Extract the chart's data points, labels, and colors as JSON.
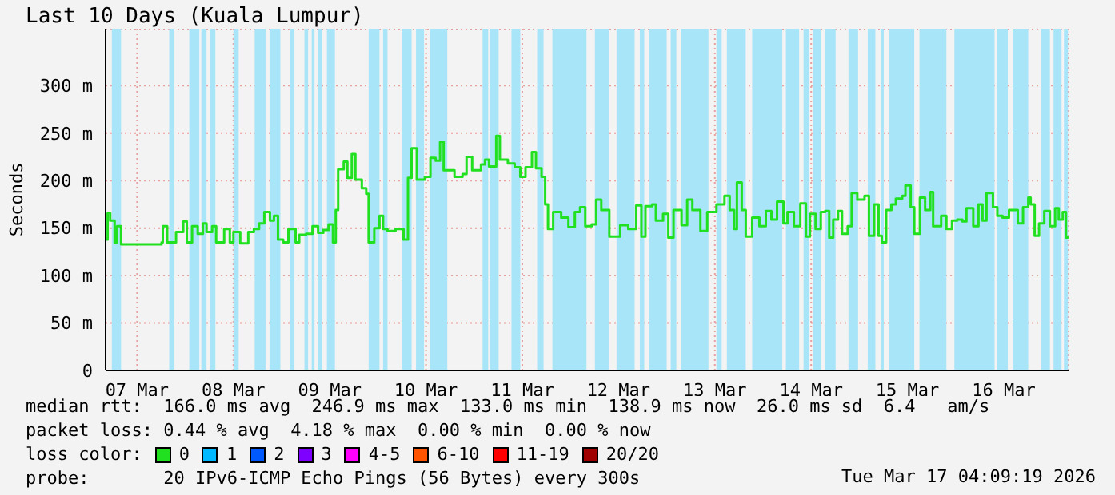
{
  "chart_data": {
    "type": "step",
    "title": "Last 10 Days (Kuala Lumpur)",
    "ylabel": "Seconds",
    "legend_title": "loss color:",
    "legend": "bottom",
    "grid": true,
    "x": [
      "2026-03-07T04:20",
      "2026-03-07T04:40",
      "2026-03-07T05:18",
      "2026-03-07T06:24",
      "2026-03-07T07:00",
      "2026-03-07T08:00",
      "2026-03-07T18:06",
      "2026-03-07T18:24",
      "2026-03-07T19:30",
      "2026-03-07T21:42",
      "2026-03-07T23:30",
      "2026-03-08T00:24",
      "2026-03-08T01:42",
      "2026-03-08T03:06",
      "2026-03-08T04:24",
      "2026-03-08T05:18",
      "2026-03-08T06:42",
      "2026-03-08T07:42",
      "2026-03-08T09:42",
      "2026-03-08T11:06",
      "2026-03-08T12:00",
      "2026-03-08T13:42",
      "2026-03-08T15:42",
      "2026-03-08T17:06",
      "2026-03-08T18:24",
      "2026-03-08T19:42",
      "2026-03-08T21:06",
      "2026-03-08T22:06",
      "2026-03-08T23:06",
      "2026-03-09T00:24",
      "2026-03-09T01:42",
      "2026-03-09T03:30",
      "2026-03-09T04:24",
      "2026-03-09T06:06",
      "2026-03-09T07:42",
      "2026-03-09T09:06",
      "2026-03-09T10:24",
      "2026-03-09T11:42",
      "2026-03-09T12:48",
      "2026-03-09T13:30",
      "2026-03-09T14:06",
      "2026-03-09T15:30",
      "2026-03-09T16:24",
      "2026-03-09T17:30",
      "2026-03-09T18:24",
      "2026-03-09T20:00",
      "2026-03-09T21:06",
      "2026-03-09T21:42",
      "2026-03-09T23:06",
      "2026-03-10T00:24",
      "2026-03-10T01:18",
      "2026-03-10T02:24",
      "2026-03-10T04:24",
      "2026-03-10T06:24",
      "2026-03-10T07:30",
      "2026-03-10T08:24",
      "2026-03-10T09:42",
      "2026-03-10T11:42",
      "2026-03-10T13:06",
      "2026-03-10T14:24",
      "2026-03-10T15:30",
      "2026-03-10T16:24",
      "2026-03-10T19:06",
      "2026-03-10T21:06",
      "2026-03-10T22:06",
      "2026-03-10T23:30",
      "2026-03-11T01:42",
      "2026-03-11T02:42",
      "2026-03-11T03:42",
      "2026-03-11T05:30",
      "2026-03-11T06:24",
      "2026-03-11T08:24",
      "2026-03-11T10:06",
      "2026-03-11T11:30",
      "2026-03-11T12:48",
      "2026-03-11T14:24",
      "2026-03-11T15:24",
      "2026-03-11T16:48",
      "2026-03-11T17:42",
      "2026-03-11T18:24",
      "2026-03-11T19:42",
      "2026-03-11T21:42",
      "2026-03-11T23:30",
      "2026-03-12T01:06",
      "2026-03-12T02:24",
      "2026-03-12T03:42",
      "2026-03-12T05:18",
      "2026-03-12T06:24",
      "2026-03-12T07:42",
      "2026-03-12T09:42",
      "2026-03-12T12:24",
      "2026-03-12T14:24",
      "2026-03-12T16:24",
      "2026-03-12T17:42",
      "2026-03-12T18:42",
      "2026-03-12T20:24",
      "2026-03-12T21:18",
      "2026-03-12T23:06",
      "2026-03-13T00:24",
      "2026-03-13T01:42",
      "2026-03-13T03:42",
      "2026-03-13T05:06",
      "2026-03-13T06:24",
      "2026-03-13T08:24",
      "2026-03-13T10:06",
      "2026-03-13T12:24",
      "2026-03-13T14:24",
      "2026-03-13T15:42",
      "2026-03-13T16:48",
      "2026-03-13T17:30",
      "2026-03-13T18:42",
      "2026-03-13T19:42",
      "2026-03-13T21:18",
      "2026-03-13T23:06",
      "2026-03-14T00:42",
      "2026-03-14T02:06",
      "2026-03-14T03:30",
      "2026-03-14T05:06",
      "2026-03-14T06:06",
      "2026-03-14T07:42",
      "2026-03-14T09:18",
      "2026-03-14T10:42",
      "2026-03-14T11:42",
      "2026-03-14T13:06",
      "2026-03-14T14:24",
      "2026-03-14T15:30",
      "2026-03-14T16:30",
      "2026-03-14T17:30",
      "2026-03-14T18:42",
      "2026-03-14T19:42",
      "2026-03-14T21:06",
      "2026-03-14T22:06",
      "2026-03-14T23:30",
      "2026-03-15T01:18",
      "2026-03-15T02:24",
      "2026-03-15T03:42",
      "2026-03-15T04:48",
      "2026-03-15T05:36",
      "2026-03-15T06:42",
      "2026-03-15T08:00",
      "2026-03-15T09:06",
      "2026-03-15T10:42",
      "2026-03-15T11:30",
      "2026-03-15T12:48",
      "2026-03-15T13:42",
      "2026-03-15T15:06",
      "2026-03-15T16:24",
      "2026-03-15T17:42",
      "2026-03-15T18:24",
      "2026-03-15T20:24",
      "2026-03-15T21:42",
      "2026-03-15T23:06",
      "2026-03-16T00:24",
      "2026-03-16T01:42",
      "2026-03-16T02:42",
      "2026-03-16T04:24",
      "2026-03-16T05:42",
      "2026-03-16T06:42",
      "2026-03-16T07:42",
      "2026-03-16T09:18",
      "2026-03-16T10:24",
      "2026-03-16T11:42",
      "2026-03-16T13:18",
      "2026-03-16T15:30",
      "2026-03-16T16:48",
      "2026-03-16T18:06",
      "2026-03-16T18:42",
      "2026-03-16T19:42",
      "2026-03-16T20:48",
      "2026-03-16T22:06",
      "2026-03-16T23:30",
      "2026-03-17T00:48",
      "2026-03-17T01:42",
      "2026-03-17T02:42",
      "2026-03-17T03:30",
      "2026-03-17T04:00"
    ],
    "series": [
      {
        "name": "0",
        "color": "#20e020",
        "values": [
          138,
          166,
          158,
          135,
          152,
          133,
          135,
          152,
          135,
          146,
          157,
          135,
          152,
          144,
          155,
          146,
          152,
          135,
          149,
          135,
          146,
          134,
          146,
          149,
          155,
          167,
          158,
          163,
          138,
          135,
          149,
          135,
          143,
          144,
          152,
          145,
          148,
          154,
          135,
          169,
          212,
          220,
          203,
          228,
          201,
          192,
          186,
          135,
          150,
          163,
          149,
          147,
          149,
          138,
          203,
          234,
          201,
          204,
          224,
          221,
          241,
          211,
          204,
          207,
          225,
          211,
          217,
          222,
          215,
          247,
          222,
          218,
          214,
          204,
          214,
          230,
          213,
          204,
          175,
          149,
          167,
          161,
          151,
          167,
          172,
          152,
          154,
          180,
          169,
          141,
          153,
          149,
          174,
          141,
          173,
          175,
          158,
          165,
          140,
          169,
          153,
          180,
          169,
          147,
          167,
          175,
          184,
          169,
          149,
          198,
          169,
          141,
          161,
          152,
          168,
          159,
          178,
          155,
          167,
          152,
          176,
          141,
          165,
          149,
          167,
          168,
          140,
          159,
          168,
          144,
          152,
          187,
          180,
          184,
          142,
          175,
          142,
          135,
          169,
          175,
          181,
          184,
          195,
          172,
          144,
          182,
          169,
          188,
          152,
          163,
          149,
          158,
          159,
          157,
          171,
          152,
          175,
          158,
          187,
          172,
          163,
          161,
          169,
          155,
          172,
          182,
          175,
          142,
          155,
          168,
          152,
          171,
          159,
          167,
          140,
          139
        ]
      },
      {
        "name": "1",
        "color": "#00b8ff",
        "values": [
          null,
          null,
          null,
          null,
          null,
          null,
          null,
          null,
          null,
          null,
          null,
          null,
          null,
          null,
          null,
          null,
          null,
          null,
          null,
          null,
          null,
          null,
          null,
          null,
          null,
          null,
          null,
          null,
          null,
          null,
          null,
          null,
          null,
          null,
          null,
          null,
          null,
          null,
          null,
          null,
          null,
          null,
          null,
          null,
          null,
          null,
          null,
          null,
          null,
          null,
          null,
          null,
          null,
          null,
          null,
          null,
          null,
          null,
          null,
          null,
          null,
          null,
          null,
          null,
          null,
          null,
          null,
          null,
          null,
          null,
          null,
          null,
          null,
          null,
          null,
          null,
          null,
          null,
          null,
          null,
          null,
          null,
          null,
          null,
          null,
          null,
          null,
          null,
          null,
          null,
          null,
          null,
          null,
          null,
          null,
          null,
          null,
          null,
          null,
          null,
          null,
          null,
          null,
          null,
          null,
          null,
          null,
          null,
          null,
          null,
          null,
          null,
          null,
          null,
          null,
          null,
          null,
          null,
          null,
          null,
          null,
          null,
          null,
          null,
          null,
          null,
          null,
          null,
          null,
          null,
          null,
          null,
          null,
          null,
          null,
          null,
          null,
          null,
          null,
          null,
          null,
          null,
          null,
          null,
          null,
          null,
          null,
          null,
          null,
          null,
          null,
          null,
          null,
          null,
          null,
          null,
          null,
          null,
          null,
          null,
          null,
          null,
          null,
          null,
          null,
          null,
          null,
          null,
          null,
          null,
          null,
          null,
          null,
          null,
          null,
          null
        ]
      },
      {
        "name": "2",
        "color": "#0059ff",
        "values": [
          null,
          null,
          null,
          null,
          null,
          null,
          null,
          null,
          null,
          null,
          null,
          null,
          null,
          null,
          null,
          null,
          null,
          null,
          null,
          null,
          null,
          null,
          null,
          null,
          null,
          null,
          null,
          null,
          null,
          null,
          null,
          null,
          null,
          null,
          null,
          null,
          null,
          null,
          null,
          null,
          null,
          null,
          null,
          null,
          null,
          null,
          null,
          null,
          null,
          null,
          null,
          null,
          null,
          null,
          null,
          null,
          null,
          null,
          null,
          null,
          null,
          null,
          null,
          null,
          null,
          null,
          null,
          null,
          null,
          null,
          null,
          null,
          null,
          null,
          null,
          null,
          null,
          null,
          null,
          null,
          null,
          null,
          null,
          null,
          null,
          null,
          null,
          null,
          null,
          null,
          null,
          null,
          null,
          null,
          null,
          null,
          null,
          null,
          null,
          null,
          null,
          null,
          null,
          null,
          null,
          null,
          null,
          null,
          null,
          null,
          null,
          null,
          null,
          null,
          null,
          null,
          null,
          null,
          null,
          null,
          null,
          null,
          null,
          null,
          null,
          null,
          null,
          null,
          null,
          null,
          null,
          null,
          null,
          null,
          null,
          null,
          null,
          null,
          null,
          null,
          null,
          null,
          null,
          null,
          null,
          null,
          null,
          null,
          null,
          null,
          null,
          null,
          null,
          null,
          null,
          null,
          null,
          null,
          null,
          null,
          null,
          null,
          null,
          null,
          null,
          null,
          null,
          null,
          null,
          null,
          null,
          null,
          null,
          null,
          null,
          null
        ]
      },
      {
        "name": "3",
        "color": "#7e00ff",
        "values": [
          null,
          null,
          null,
          null,
          null,
          null,
          null,
          null,
          null,
          null,
          null,
          null,
          null,
          null,
          null,
          null,
          null,
          null,
          null,
          null,
          null,
          null,
          null,
          null,
          null,
          null,
          null,
          null,
          null,
          null,
          null,
          null,
          null,
          null,
          null,
          null,
          null,
          null,
          null,
          null,
          null,
          null,
          null,
          null,
          null,
          null,
          null,
          null,
          null,
          null,
          null,
          null,
          null,
          null,
          null,
          null,
          null,
          null,
          null,
          null,
          null,
          null,
          null,
          null,
          null,
          null,
          null,
          null,
          null,
          null,
          null,
          null,
          null,
          null,
          null,
          null,
          null,
          null,
          null,
          null,
          null,
          null,
          null,
          null,
          null,
          null,
          null,
          null,
          null,
          null,
          null,
          null,
          null,
          null,
          null,
          null,
          null,
          null,
          null,
          null,
          null,
          null,
          null,
          null,
          null,
          null,
          null,
          null,
          null,
          null,
          null,
          null,
          null,
          null,
          null,
          null,
          null,
          null,
          null,
          null,
          null,
          null,
          null,
          null,
          null,
          null,
          null,
          null,
          null,
          null,
          null,
          null,
          null,
          null,
          null,
          null,
          null,
          null,
          null,
          null,
          null,
          null,
          null,
          null,
          null,
          null,
          null,
          null,
          null,
          null,
          null,
          null,
          null,
          null,
          null,
          null,
          null,
          null,
          null,
          null,
          null,
          null,
          null,
          null,
          null,
          null,
          null,
          null,
          null,
          null,
          null,
          null,
          null,
          null,
          null,
          null
        ]
      },
      {
        "name": "4-5",
        "color": "#ff00ff",
        "values": [
          null,
          null,
          null,
          null,
          null,
          null,
          null,
          null,
          null,
          null,
          null,
          null,
          null,
          null,
          null,
          null,
          null,
          null,
          null,
          null,
          null,
          null,
          null,
          null,
          null,
          null,
          null,
          null,
          null,
          null,
          null,
          null,
          null,
          null,
          null,
          null,
          null,
          null,
          null,
          null,
          null,
          null,
          null,
          null,
          null,
          null,
          null,
          null,
          null,
          null,
          null,
          null,
          null,
          null,
          null,
          null,
          null,
          null,
          null,
          null,
          null,
          null,
          null,
          null,
          null,
          null,
          null,
          null,
          null,
          null,
          null,
          null,
          null,
          null,
          null,
          null,
          null,
          null,
          null,
          null,
          null,
          null,
          null,
          null,
          null,
          null,
          null,
          null,
          null,
          null,
          null,
          null,
          null,
          null,
          null,
          null,
          null,
          null,
          null,
          null,
          null,
          null,
          null,
          null,
          null,
          null,
          null,
          null,
          null,
          null,
          null,
          null,
          null,
          null,
          null,
          null,
          null,
          null,
          null,
          null,
          null,
          null,
          null,
          null,
          null,
          null,
          null,
          null,
          null,
          null,
          null,
          null,
          null,
          null,
          null,
          null,
          null,
          null,
          null,
          null,
          null,
          null,
          null,
          null,
          null,
          null,
          null,
          null,
          null,
          null,
          null,
          null,
          null,
          null,
          null,
          null,
          null,
          null,
          null,
          null,
          null,
          null,
          null,
          null,
          null,
          null,
          null,
          null,
          null,
          null,
          null,
          null,
          null,
          null,
          null,
          null
        ]
      },
      {
        "name": "6-10",
        "color": "#ff5500",
        "values": [
          null,
          null,
          null,
          null,
          null,
          null,
          null,
          null,
          null,
          null,
          null,
          null,
          null,
          null,
          null,
          null,
          null,
          null,
          null,
          null,
          null,
          null,
          null,
          null,
          null,
          null,
          null,
          null,
          null,
          null,
          null,
          null,
          null,
          null,
          null,
          null,
          null,
          null,
          null,
          null,
          null,
          null,
          null,
          null,
          null,
          null,
          null,
          null,
          null,
          null,
          null,
          null,
          null,
          null,
          null,
          null,
          null,
          null,
          null,
          null,
          null,
          null,
          null,
          null,
          null,
          null,
          null,
          null,
          null,
          null,
          null,
          null,
          null,
          null,
          null,
          null,
          null,
          null,
          null,
          null,
          null,
          null,
          null,
          null,
          null,
          null,
          null,
          null,
          null,
          null,
          null,
          null,
          null,
          null,
          null,
          null,
          null,
          null,
          null,
          null,
          null,
          null,
          null,
          null,
          null,
          null,
          null,
          null,
          null,
          null,
          null,
          null,
          null,
          null,
          null,
          null,
          null,
          null,
          null,
          null,
          null,
          null,
          null,
          null,
          null,
          null,
          null,
          null,
          null,
          null,
          null,
          null,
          null,
          null,
          null,
          null,
          null,
          null,
          null,
          null,
          null,
          null,
          null,
          null,
          null,
          null,
          null,
          null,
          null,
          null,
          null,
          null,
          null,
          null,
          null,
          null,
          null,
          null,
          null,
          null,
          null,
          null,
          null,
          null,
          null,
          null,
          null,
          null,
          null,
          null,
          null,
          null,
          null,
          null,
          null,
          null
        ]
      },
      {
        "name": "11-19",
        "color": "#ff0000",
        "values": [
          null,
          null,
          null,
          null,
          null,
          null,
          null,
          null,
          null,
          null,
          null,
          null,
          null,
          null,
          null,
          null,
          null,
          null,
          null,
          null,
          null,
          null,
          null,
          null,
          null,
          null,
          null,
          null,
          null,
          null,
          null,
          null,
          null,
          null,
          null,
          null,
          null,
          null,
          null,
          null,
          null,
          null,
          null,
          null,
          null,
          null,
          null,
          null,
          null,
          null,
          null,
          null,
          null,
          null,
          null,
          null,
          null,
          null,
          null,
          null,
          null,
          null,
          null,
          null,
          null,
          null,
          null,
          null,
          null,
          null,
          null,
          null,
          null,
          null,
          null,
          null,
          null,
          null,
          null,
          null,
          null,
          null,
          null,
          null,
          null,
          null,
          null,
          null,
          null,
          null,
          null,
          null,
          null,
          null,
          null,
          null,
          null,
          null,
          null,
          null,
          null,
          null,
          null,
          null,
          null,
          null,
          null,
          null,
          null,
          null,
          null,
          null,
          null,
          null,
          null,
          null,
          null,
          null,
          null,
          null,
          null,
          null,
          null,
          null,
          null,
          null,
          null,
          null,
          null,
          null,
          null,
          null,
          null,
          null,
          null,
          null,
          null,
          null,
          null,
          null,
          null,
          null,
          null,
          null,
          null,
          null,
          null,
          null,
          null,
          null,
          null,
          null,
          null,
          null,
          null,
          null,
          null,
          null,
          null,
          null,
          null,
          null,
          null,
          null,
          null,
          null,
          null,
          null,
          null,
          null,
          null,
          null,
          null,
          null,
          null,
          null
        ]
      },
      {
        "name": "20/20",
        "color": "#a10000",
        "values": [
          null,
          null,
          null,
          null,
          null,
          null,
          null,
          null,
          null,
          null,
          null,
          null,
          null,
          null,
          null,
          null,
          null,
          null,
          null,
          null,
          null,
          null,
          null,
          null,
          null,
          null,
          null,
          null,
          null,
          null,
          null,
          null,
          null,
          null,
          null,
          null,
          null,
          null,
          null,
          null,
          null,
          null,
          null,
          null,
          null,
          null,
          null,
          null,
          null,
          null,
          null,
          null,
          null,
          null,
          null,
          null,
          null,
          null,
          null,
          null,
          null,
          null,
          null,
          null,
          null,
          null,
          null,
          null,
          null,
          null,
          null,
          null,
          null,
          null,
          null,
          null,
          null,
          null,
          null,
          null,
          null,
          null,
          null,
          null,
          null,
          null,
          null,
          null,
          null,
          null,
          null,
          null,
          null,
          null,
          null,
          null,
          null,
          null,
          null,
          null,
          null,
          null,
          null,
          null,
          null,
          null,
          null,
          null,
          null,
          null,
          null,
          null,
          null,
          null,
          null,
          null,
          null,
          null,
          null,
          null,
          null,
          null,
          null,
          null,
          null,
          null,
          null,
          null,
          null,
          null,
          null,
          null,
          null,
          null,
          null,
          null,
          null,
          null,
          null,
          null,
          null,
          null,
          null,
          null,
          null,
          null,
          null,
          null,
          null,
          null,
          null,
          null,
          null,
          null,
          null,
          null,
          null,
          null,
          null,
          null,
          null,
          null,
          null,
          null,
          null,
          null,
          null,
          null,
          null,
          null,
          null,
          null,
          null,
          null,
          null,
          null
        ]
      }
    ],
    "xlim": [
      "2026-03-07T04:09",
      "2026-03-17T04:09"
    ],
    "xticks": [
      {
        "value": "2026-03-07T12:00",
        "label": "07 Mar"
      },
      {
        "value": "2026-03-08T12:00",
        "label": "08 Mar"
      },
      {
        "value": "2026-03-09T12:00",
        "label": "09 Mar"
      },
      {
        "value": "2026-03-10T12:00",
        "label": "10 Mar"
      },
      {
        "value": "2026-03-11T12:00",
        "label": "11 Mar"
      },
      {
        "value": "2026-03-12T12:00",
        "label": "12 Mar"
      },
      {
        "value": "2026-03-13T12:00",
        "label": "13 Mar"
      },
      {
        "value": "2026-03-14T12:00",
        "label": "14 Mar"
      },
      {
        "value": "2026-03-15T12:00",
        "label": "15 Mar"
      },
      {
        "value": "2026-03-16T12:00",
        "label": "16 Mar"
      }
    ],
    "ylim": [
      0,
      360
    ],
    "yticks": [
      0,
      {
        "value": 50,
        "label": "50 m"
      },
      {
        "value": 100,
        "label": "100 m"
      },
      {
        "value": 150,
        "label": "150 m"
      },
      {
        "value": 200,
        "label": "200 m"
      },
      {
        "value": 250,
        "label": "250 m"
      },
      {
        "value": 300,
        "label": "300 m"
      }
    ],
    "bands": [
      {
        "axis": "x",
        "from": "2026-03-07T05:42",
        "to": "2026-03-07T08:00",
        "color": "#a9e5f8"
      },
      {
        "axis": "x",
        "from": "2026-03-07T20:00",
        "to": "2026-03-07T21:18",
        "color": "#a9e5f8"
      },
      {
        "axis": "x",
        "from": "2026-03-08T01:00",
        "to": "2026-03-08T03:30",
        "color": "#a9e5f8"
      },
      {
        "axis": "x",
        "from": "2026-03-08T04:00",
        "to": "2026-03-08T05:18",
        "color": "#a9e5f8"
      },
      {
        "axis": "x",
        "from": "2026-03-08T06:06",
        "to": "2026-03-08T07:30",
        "color": "#a9e5f8"
      },
      {
        "axis": "x",
        "from": "2026-03-08T12:00",
        "to": "2026-03-08T13:18",
        "color": "#a9e5f8"
      },
      {
        "axis": "x",
        "from": "2026-03-08T17:18",
        "to": "2026-03-08T20:00",
        "color": "#a9e5f8"
      },
      {
        "axis": "x",
        "from": "2026-03-08T21:00",
        "to": "2026-03-08T23:42",
        "color": "#a9e5f8"
      },
      {
        "axis": "x",
        "from": "2026-03-09T02:06",
        "to": "2026-03-09T03:12",
        "color": "#a9e5f8"
      },
      {
        "axis": "x",
        "from": "2026-03-09T05:42",
        "to": "2026-03-09T06:36",
        "color": "#a9e5f8"
      },
      {
        "axis": "x",
        "from": "2026-03-09T07:30",
        "to": "2026-03-09T08:12",
        "color": "#a9e5f8"
      },
      {
        "axis": "x",
        "from": "2026-03-09T09:00",
        "to": "2026-03-09T10:06",
        "color": "#a9e5f8"
      },
      {
        "axis": "x",
        "from": "2026-03-09T11:18",
        "to": "2026-03-09T13:18",
        "color": "#a9e5f8"
      },
      {
        "axis": "x",
        "from": "2026-03-09T21:42",
        "to": "2026-03-10T00:24",
        "color": "#a9e5f8"
      },
      {
        "axis": "x",
        "from": "2026-03-10T01:18",
        "to": "2026-03-10T02:24",
        "color": "#a9e5f8"
      },
      {
        "axis": "x",
        "from": "2026-03-10T06:06",
        "to": "2026-03-10T08:24",
        "color": "#a9e5f8"
      },
      {
        "axis": "x",
        "from": "2026-03-10T09:30",
        "to": "2026-03-10T11:30",
        "color": "#a9e5f8"
      },
      {
        "axis": "x",
        "from": "2026-03-10T13:00",
        "to": "2026-03-10T17:18",
        "color": "#a9e5f8"
      },
      {
        "axis": "x",
        "from": "2026-03-11T02:06",
        "to": "2026-03-11T03:30",
        "color": "#a9e5f8"
      },
      {
        "axis": "x",
        "from": "2026-03-11T04:00",
        "to": "2026-03-11T06:06",
        "color": "#a9e5f8"
      },
      {
        "axis": "x",
        "from": "2026-03-11T09:18",
        "to": "2026-03-11T11:30",
        "color": "#a9e5f8"
      },
      {
        "axis": "x",
        "from": "2026-03-11T15:42",
        "to": "2026-03-11T17:18",
        "color": "#a9e5f8"
      },
      {
        "axis": "x",
        "from": "2026-03-11T19:30",
        "to": "2026-03-12T04:00",
        "color": "#a9e5f8"
      },
      {
        "axis": "x",
        "from": "2026-03-12T06:06",
        "to": "2026-03-12T09:42",
        "color": "#a9e5f8"
      },
      {
        "axis": "x",
        "from": "2026-03-12T11:30",
        "to": "2026-03-12T16:00",
        "color": "#a9e5f8"
      },
      {
        "axis": "x",
        "from": "2026-03-12T17:18",
        "to": "2026-03-12T18:24",
        "color": "#a9e5f8"
      },
      {
        "axis": "x",
        "from": "2026-03-12T19:30",
        "to": "2026-03-13T00:00",
        "color": "#a9e5f8"
      },
      {
        "axis": "x",
        "from": "2026-03-13T01:00",
        "to": "2026-03-13T02:24",
        "color": "#a9e5f8"
      },
      {
        "axis": "x",
        "from": "2026-03-13T03:30",
        "to": "2026-03-13T10:24",
        "color": "#a9e5f8"
      },
      {
        "axis": "x",
        "from": "2026-03-13T12:24",
        "to": "2026-03-13T13:42",
        "color": "#a9e5f8"
      },
      {
        "axis": "x",
        "from": "2026-03-13T15:00",
        "to": "2026-03-13T19:42",
        "color": "#a9e5f8"
      },
      {
        "axis": "x",
        "from": "2026-03-13T21:18",
        "to": "2026-03-14T04:48",
        "color": "#a9e5f8"
      },
      {
        "axis": "x",
        "from": "2026-03-14T05:42",
        "to": "2026-03-14T09:00",
        "color": "#a9e5f8"
      },
      {
        "axis": "x",
        "from": "2026-03-14T10:06",
        "to": "2026-03-14T11:30",
        "color": "#a9e5f8"
      },
      {
        "axis": "x",
        "from": "2026-03-14T12:24",
        "to": "2026-03-14T14:24",
        "color": "#a9e5f8"
      },
      {
        "axis": "x",
        "from": "2026-03-14T15:30",
        "to": "2026-03-14T18:06",
        "color": "#a9e5f8"
      },
      {
        "axis": "x",
        "from": "2026-03-14T21:18",
        "to": "2026-03-14T23:42",
        "color": "#a9e5f8"
      },
      {
        "axis": "x",
        "from": "2026-03-15T02:06",
        "to": "2026-03-15T04:00",
        "color": "#a9e5f8"
      },
      {
        "axis": "x",
        "from": "2026-03-15T05:18",
        "to": "2026-03-15T06:06",
        "color": "#a9e5f8"
      },
      {
        "axis": "x",
        "from": "2026-03-15T07:30",
        "to": "2026-03-15T13:42",
        "color": "#a9e5f8"
      },
      {
        "axis": "x",
        "from": "2026-03-15T15:00",
        "to": "2026-03-15T21:42",
        "color": "#a9e5f8"
      },
      {
        "axis": "x",
        "from": "2026-03-15T23:42",
        "to": "2026-03-16T09:42",
        "color": "#a9e5f8"
      },
      {
        "axis": "x",
        "from": "2026-03-16T10:24",
        "to": "2026-03-16T13:00",
        "color": "#a9e5f8"
      },
      {
        "axis": "x",
        "from": "2026-03-16T14:24",
        "to": "2026-03-16T18:06",
        "color": "#a9e5f8"
      },
      {
        "axis": "x",
        "from": "2026-03-16T21:18",
        "to": "2026-03-16T23:30",
        "color": "#a9e5f8"
      },
      {
        "axis": "x",
        "from": "2026-03-17T00:24",
        "to": "2026-03-17T02:24",
        "color": "#a9e5f8"
      },
      {
        "axis": "x",
        "from": "2026-03-17T03:00",
        "to": "2026-03-17T04:00",
        "color": "#a9e5f8"
      }
    ],
    "annotations": [
      "median rtt:  166.0 ms avg  246.9 ms max  133.0 ms min  138.9 ms now  26.0 ms sd  6.4   am/s",
      "packet loss: 0.44 % avg  4.18 % max  0.00 % min  0.00 % now",
      "probe:       20 IPv6-ICMP Echo Pings (56 Bytes) every 300s",
      "Tue Mar 17 04:09:19 2026"
    ]
  }
}
